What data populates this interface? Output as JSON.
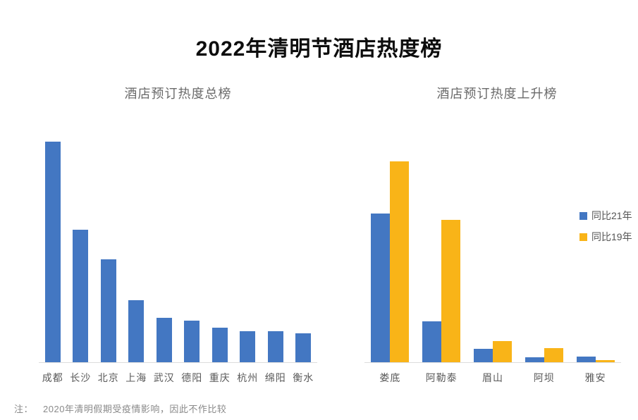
{
  "title": "2022年清明节酒店热度榜",
  "note": {
    "prefix": "注：",
    "text": "2020年清明假期受疫情影响，因此不作比较"
  },
  "colors": {
    "bar_blue": "#4377C2",
    "bar_yellow": "#F9B418",
    "baseline": "#DCDCDC",
    "title_text": "#0D0D0D",
    "subtitle_text": "#6A6A6A",
    "axis_label_text": "#595959",
    "note_text": "#8A8A8A",
    "background": "#FFFFFF"
  },
  "chart_data": [
    {
      "type": "bar",
      "title": "酒店预订热度总榜",
      "categories": [
        "成都",
        "长沙",
        "北京",
        "上海",
        "武汉",
        "德阳",
        "重庆",
        "杭州",
        "绵阳",
        "衡水"
      ],
      "series": [
        {
          "name": "酒店预订热度",
          "color": "#4377C2",
          "values": [
            100,
            60,
            46.5,
            28,
            20,
            19,
            15.5,
            14,
            14,
            13
          ]
        }
      ],
      "xlabel": "",
      "ylabel": "",
      "ylim": [
        0,
        106
      ],
      "grid": false,
      "y_axis_shown": false,
      "legend_position": "none",
      "value_scale_note": "relative heat index estimated from bar heights, 成都 = 100; no numeric axis shown in source"
    },
    {
      "type": "bar",
      "title": "酒店预订热度上升榜",
      "categories": [
        "娄底",
        "阿勒泰",
        "眉山",
        "阿坝",
        "雅安"
      ],
      "series": [
        {
          "name": "同比21年",
          "color": "#4377C2",
          "values": [
            67.5,
            18.5,
            6,
            2.3,
            2.6
          ]
        },
        {
          "name": "同比19年",
          "color": "#F9B418",
          "values": [
            91,
            64.5,
            9.5,
            6.4,
            1.1
          ]
        }
      ],
      "xlabel": "",
      "ylabel": "",
      "ylim": [
        0,
        106
      ],
      "grid": false,
      "y_axis_shown": false,
      "legend_position": "right",
      "value_scale_note": "same relative scale as left chart; estimated from bar heights"
    }
  ]
}
